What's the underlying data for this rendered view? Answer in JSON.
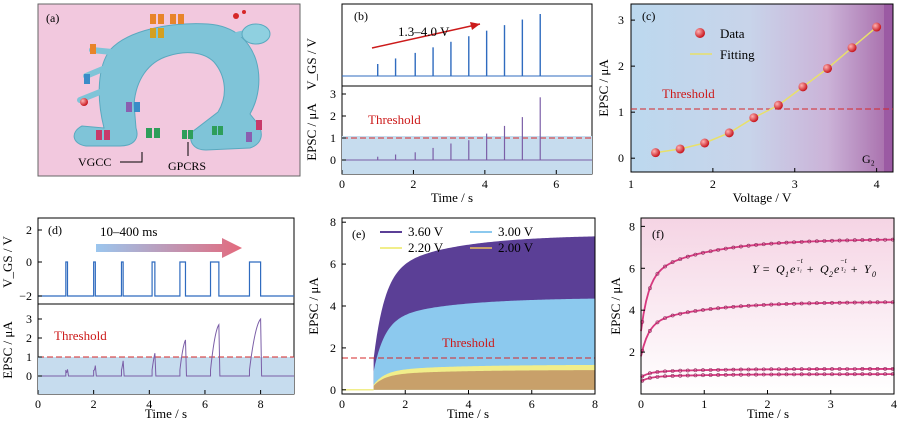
{
  "panel_labels": {
    "a": "(a)",
    "b": "(b)",
    "c": "(c)",
    "d": "(d)",
    "e": "(e)",
    "f": "(f)"
  },
  "colors": {
    "threshold": "#d62728",
    "pulse": "#2f6bbf",
    "epsc": "#7b5ea7",
    "shade": "#bcd6ea",
    "data": "#d9343c",
    "fit": "#e8e06a",
    "pink": "#f4c8dc",
    "e_3_6": "#5b3f96",
    "e_3_0": "#8cc9ee",
    "e_2_2": "#f1ee8a",
    "e_2_0": "#c8a06a",
    "f_fit": "#d6397f"
  },
  "panel_a": {
    "labels": [
      "VGCC",
      "GPCRS"
    ],
    "icons": [
      "neuron-synapse",
      "vgcc-channel-icon",
      "gpcr-receptor-icon"
    ]
  },
  "chart_data": [
    {
      "panel": "(b)",
      "type": "line",
      "xlabel": "Time / s",
      "ylabel_top": "V_GS / V",
      "ylabel_bottom": "EPSC / μA",
      "annotation": "1.3–4.0 V",
      "threshold_label": "Threshold",
      "xticks": [
        "0",
        "2",
        "4",
        "6"
      ],
      "xlim": [
        0,
        7
      ],
      "epsc_yticks": [
        "0",
        "1",
        "2",
        "3"
      ],
      "ylim_bottom": [
        -0.15,
        3.4
      ],
      "threshold": 1.0,
      "pulse_times": [
        1.0,
        1.5,
        2.05,
        2.55,
        3.05,
        3.55,
        4.05,
        4.55,
        5.05,
        5.55
      ],
      "epsc_peaks": [
        0.15,
        0.25,
        0.35,
        0.55,
        0.75,
        0.9,
        1.2,
        1.55,
        1.95,
        2.85
      ],
      "gate_voltages": [
        1.3,
        1.6,
        1.9,
        2.2,
        2.5,
        2.8,
        3.1,
        3.4,
        3.7,
        4.0
      ]
    },
    {
      "panel": "(c)",
      "type": "scatter",
      "xlabel": "Voltage / V",
      "ylabel": "EPSC / μA",
      "xticks": [
        "1",
        "2",
        "3",
        "4"
      ],
      "yticks": [
        "0",
        "1",
        "2",
        "3"
      ],
      "xlim": [
        1,
        4.2
      ],
      "ylim": [
        -0.3,
        3.35
      ],
      "legend": [
        "Data",
        "Fitting"
      ],
      "threshold": 1.0,
      "threshold_label": "Threshold",
      "region_label": "G₂",
      "x": [
        1.3,
        1.6,
        1.9,
        2.2,
        2.5,
        2.8,
        3.1,
        3.4,
        3.7,
        4.0
      ],
      "y": [
        0.12,
        0.2,
        0.33,
        0.55,
        0.88,
        1.15,
        1.55,
        1.95,
        2.4,
        2.85
      ]
    },
    {
      "panel": "(d)",
      "type": "line",
      "xlabel": "Time / s",
      "ylabel_top": "V_GS / V",
      "ylabel_bottom": "EPSC / μA",
      "annotation": "10–400 ms",
      "threshold_label": "Threshold",
      "xticks": [
        "0",
        "2",
        "4",
        "6",
        "8"
      ],
      "xlim": [
        0,
        9.2
      ],
      "vgs_yticks": [
        "2",
        "0",
        "−2"
      ],
      "epsc_yticks": [
        "0",
        "1",
        "2",
        "3"
      ],
      "ylim_bottom": [
        -0.7,
        3.5
      ],
      "threshold": 1.0,
      "pulse_starts": [
        1.0,
        2.0,
        3.0,
        4.1,
        5.1,
        6.2,
        7.6
      ],
      "pulse_widths_ms": [
        10,
        20,
        50,
        100,
        200,
        300,
        400
      ],
      "epsc_peaks": [
        0.35,
        0.55,
        0.8,
        1.2,
        1.9,
        2.7,
        3.0
      ]
    },
    {
      "panel": "(e)",
      "type": "area",
      "xlabel": "Time / s",
      "ylabel": "EPSC / μA",
      "xticks": [
        "0",
        "2",
        "4",
        "6",
        "8"
      ],
      "yticks": [
        "0",
        "2",
        "4",
        "6",
        "8"
      ],
      "xlim": [
        0,
        8
      ],
      "ylim": [
        -0.2,
        8.2
      ],
      "threshold": 1.0,
      "threshold_label": "Threshold",
      "series": [
        {
          "name": "3.60 V",
          "onset": 1.0,
          "plateau": 7.4
        },
        {
          "name": "3.00 V",
          "onset": 1.0,
          "plateau": 4.4
        },
        {
          "name": "2.20 V",
          "onset": 1.0,
          "plateau": 1.2
        },
        {
          "name": "2.00 V",
          "onset": 1.0,
          "plateau": 0.95
        }
      ]
    },
    {
      "panel": "(f)",
      "type": "scatter",
      "xlabel": "Time / s",
      "ylabel": "EPSC / μA",
      "xticks": [
        "0",
        "1",
        "2",
        "3",
        "4"
      ],
      "yticks": [
        "2",
        "4",
        "6",
        "8"
      ],
      "xlim": [
        0,
        4
      ],
      "ylim": [
        0,
        8.4
      ],
      "equation_parts": {
        "y": "Y",
        "eq": " = ",
        "q1": "Q",
        "s1": "1",
        "e1": "e",
        "plus1": " + ",
        "q2": "Q",
        "s2": "2",
        "e2": "e",
        "plus2": " + ",
        "y0": "Y",
        "s0": "0",
        "num": "−t",
        "den1": "τ₁",
        "den2": "τ₂"
      },
      "series": [
        {
          "start": 3.0,
          "plateau": 7.4
        },
        {
          "start": 1.8,
          "plateau": 4.4
        },
        {
          "start": 0.8,
          "plateau": 1.2
        },
        {
          "start": 0.6,
          "plateau": 0.95
        }
      ]
    }
  ]
}
